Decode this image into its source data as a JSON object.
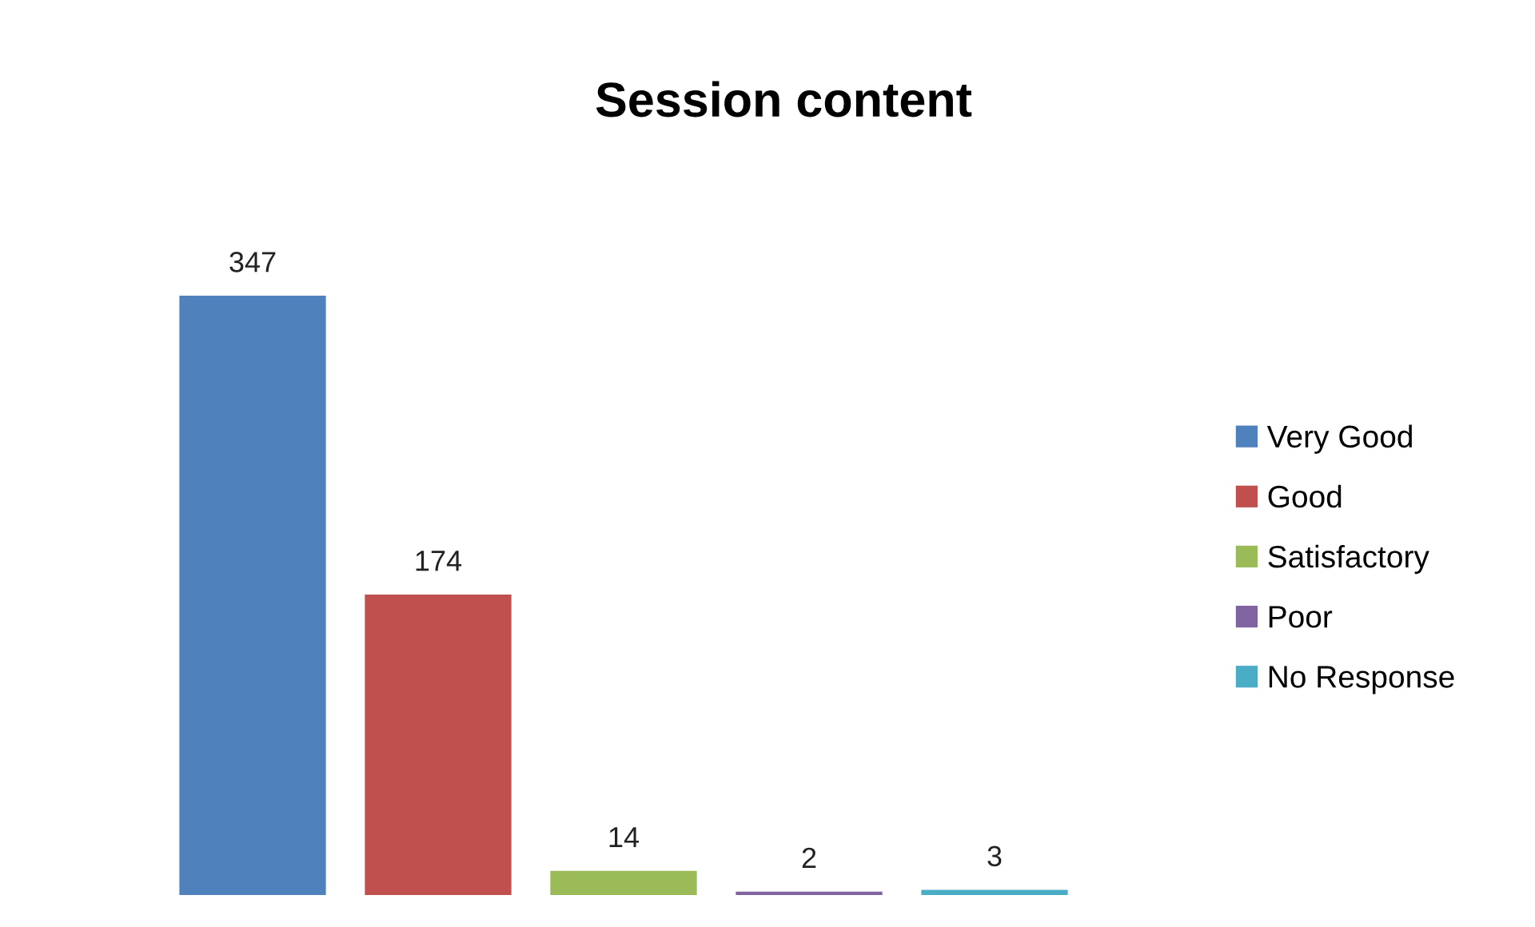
{
  "chart_data": {
    "type": "bar",
    "title": "Session content",
    "categories": [
      null
    ],
    "series": [
      {
        "name": "Very Good",
        "color": "#4f81bd",
        "values": [
          347
        ]
      },
      {
        "name": "Good",
        "color": "#c0504d",
        "values": [
          174
        ]
      },
      {
        "name": "Satisfactory",
        "color": "#9bbb59",
        "values": [
          14
        ]
      },
      {
        "name": "Poor",
        "color": "#8064a2",
        "values": [
          2
        ]
      },
      {
        "name": "No Response",
        "color": "#4bacc6",
        "values": [
          3
        ]
      }
    ],
    "data_labels": true,
    "legend": "right",
    "grid": false
  }
}
